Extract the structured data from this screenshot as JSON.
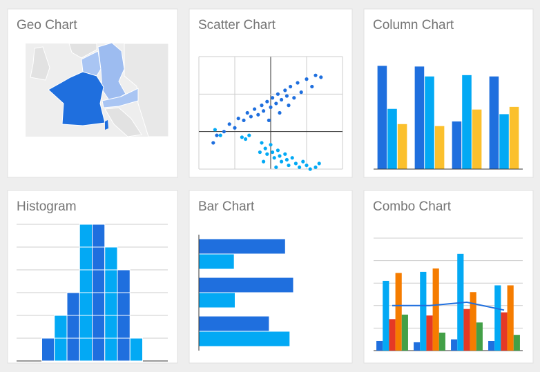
{
  "chart_data": [
    {
      "type": "geo",
      "title": "Geo Chart"
    },
    {
      "type": "scatter",
      "title": "Scatter Chart",
      "xlim": [
        -4,
        4
      ],
      "xticks": [
        -4,
        -2,
        0,
        2,
        4
      ],
      "ylim": [
        -1,
        2
      ],
      "yticks": [
        -1,
        0,
        1,
        2
      ],
      "grid": true,
      "series": [
        {
          "color": "#1f6fde",
          "x": [
            -3.2,
            -3.0,
            -2.6,
            -2.3,
            -2.0,
            -1.8,
            -1.5,
            -1.3,
            -1.1,
            -0.9,
            -0.7,
            -0.5,
            -0.4,
            -0.2,
            0,
            0.1,
            0.3,
            0.4,
            0.6,
            0.8,
            0.9,
            1.1,
            1.3,
            1.5,
            1.7,
            2.0,
            2.3,
            2.5,
            2.8,
            1.0,
            -0.1,
            0.5
          ],
          "values": [
            -0.3,
            -0.1,
            0.0,
            0.2,
            0.1,
            0.35,
            0.3,
            0.5,
            0.4,
            0.6,
            0.45,
            0.7,
            0.55,
            0.8,
            0.65,
            0.9,
            0.75,
            1.0,
            0.85,
            1.1,
            0.95,
            1.2,
            0.9,
            1.3,
            1.05,
            1.4,
            1.2,
            1.5,
            1.45,
            0.7,
            0.3,
            0.5
          ]
        },
        {
          "color": "#03a9f4",
          "x": [
            -3.1,
            -2.8,
            -1.6,
            -1.4,
            -1.2,
            -0.5,
            -0.3,
            -0.2,
            0,
            0.1,
            0.2,
            0.4,
            0.5,
            0.6,
            0.8,
            0.9,
            1.0,
            1.2,
            1.4,
            1.6,
            1.8,
            2.0,
            2.2,
            2.5,
            2.7,
            -0.4,
            -0.6,
            0.3
          ],
          "values": [
            0.05,
            -0.1,
            -0.15,
            -0.2,
            -0.1,
            -0.3,
            -0.45,
            -0.6,
            -0.35,
            -0.55,
            -0.7,
            -0.5,
            -0.65,
            -0.8,
            -0.6,
            -0.75,
            -0.9,
            -0.7,
            -0.85,
            -0.95,
            -0.8,
            -0.9,
            -1.0,
            -0.95,
            -0.85,
            -0.8,
            -0.55,
            -0.95
          ]
        }
      ]
    },
    {
      "type": "column",
      "title": "Column Chart",
      "ylim": [
        0,
        170
      ],
      "series": [
        {
          "color": "#1f6fde",
          "values": [
            156,
            155,
            72,
            140
          ]
        },
        {
          "color": "#03a9f4",
          "values": [
            91,
            140,
            142,
            83
          ]
        },
        {
          "color": "#fbc02d",
          "values": [
            68,
            65,
            90,
            94
          ]
        }
      ]
    },
    {
      "type": "histogram",
      "title": "Histogram",
      "bins": [
        2,
        3,
        4,
        5,
        6,
        7,
        8,
        9,
        10
      ],
      "values": [
        1,
        2,
        3,
        6,
        6,
        5,
        4,
        1
      ],
      "xlim": [
        0,
        12
      ],
      "ylim": [
        0,
        6
      ],
      "yticks": [
        0,
        1,
        2,
        3,
        4,
        5,
        6
      ],
      "grid": true,
      "colors": [
        "#1f6fde",
        "#03a9f4"
      ]
    },
    {
      "type": "bar",
      "title": "Bar Chart",
      "xlim": [
        0,
        160
      ],
      "series": [
        {
          "color": "#1f6fde",
          "values": [
            96,
            105,
            78
          ]
        },
        {
          "color": "#03a9f4",
          "values": [
            39,
            40,
            101
          ]
        }
      ]
    },
    {
      "type": "combo",
      "title": "Combo Chart",
      "ylim": [
        0,
        5
      ],
      "yticks": [
        0,
        1,
        2,
        3,
        4,
        5
      ],
      "grid": true,
      "series": [
        {
          "color": "#1f6fde",
          "kind": "bar",
          "values": [
            0.43,
            0.37,
            0.5,
            0.43
          ]
        },
        {
          "color": "#03a9f4",
          "kind": "bar",
          "values": [
            3.1,
            3.5,
            4.3,
            2.9
          ]
        },
        {
          "color": "#e53925",
          "kind": "bar",
          "values": [
            1.4,
            1.56,
            1.85,
            1.7
          ]
        },
        {
          "color": "#f57c00",
          "kind": "bar",
          "values": [
            3.45,
            3.65,
            2.6,
            2.9
          ]
        },
        {
          "color": "#43a047",
          "kind": "bar",
          "values": [
            1.6,
            0.8,
            1.25,
            0.7
          ]
        },
        {
          "color": "#1f6fde",
          "kind": "line",
          "values": [
            2.0,
            2.0,
            2.15,
            1.8
          ]
        }
      ]
    }
  ]
}
